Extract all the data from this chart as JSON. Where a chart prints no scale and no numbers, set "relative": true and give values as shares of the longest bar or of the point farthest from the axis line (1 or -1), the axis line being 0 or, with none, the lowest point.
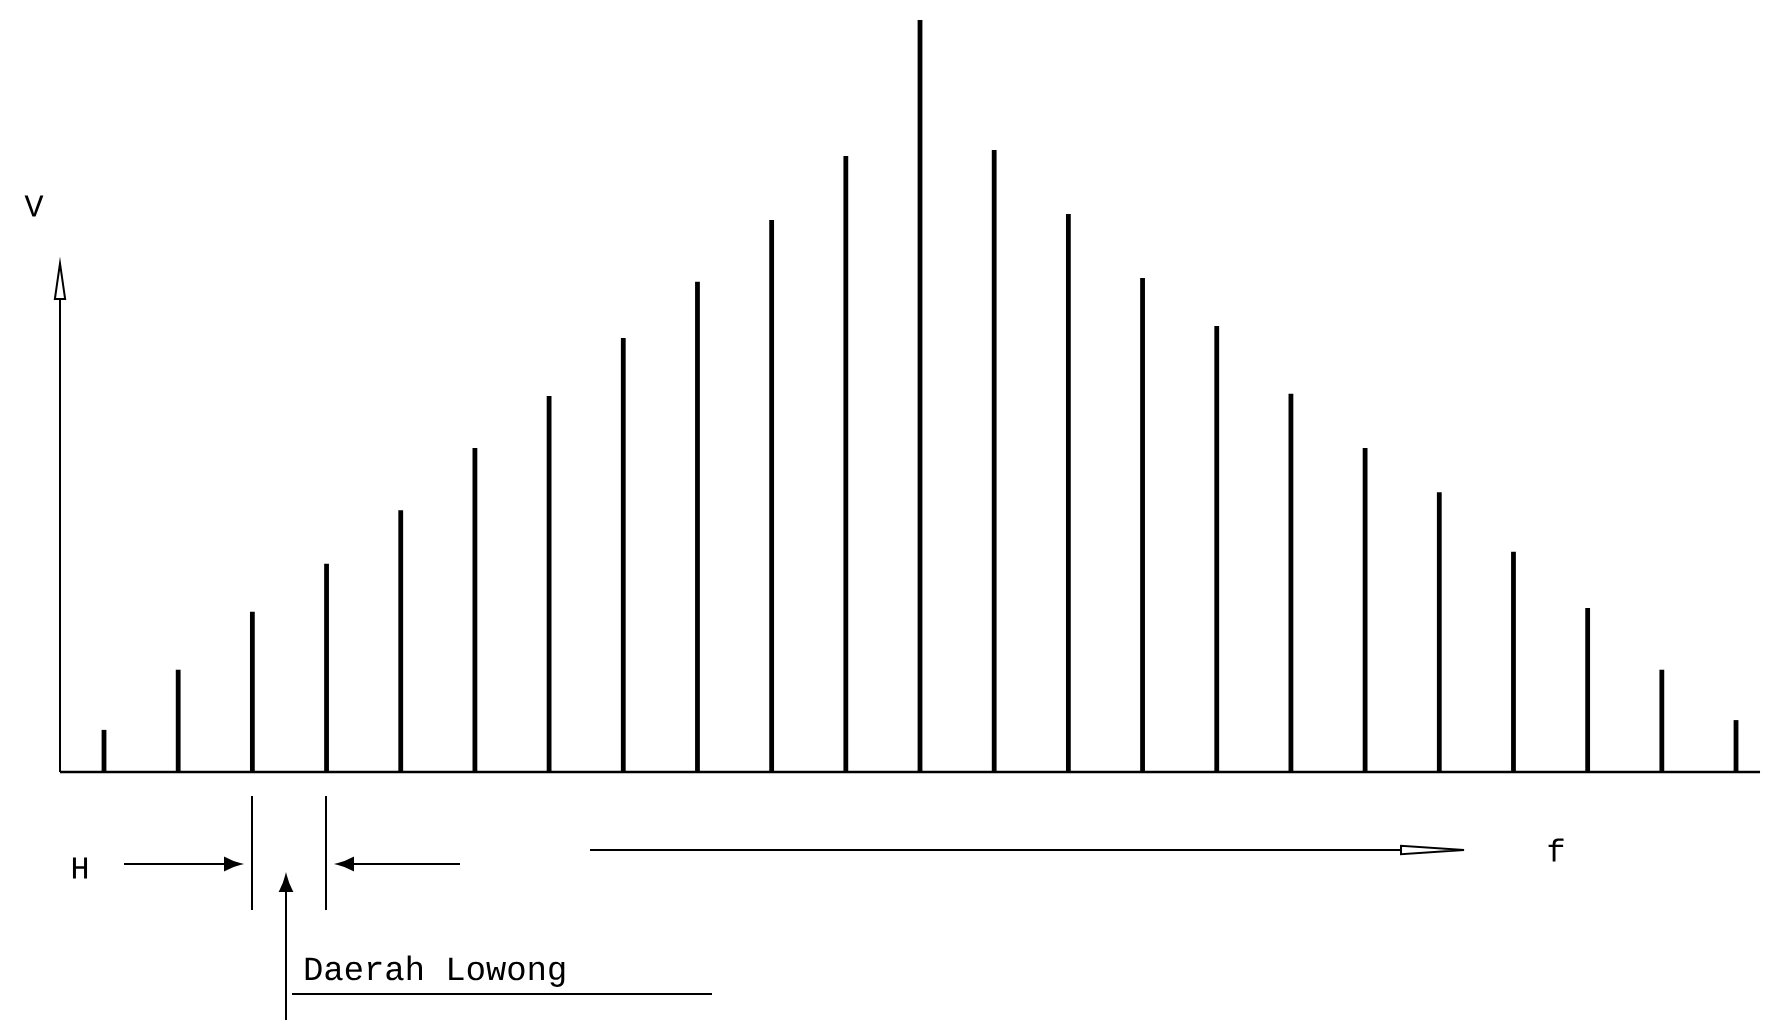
{
  "chart_data": {
    "type": "bar",
    "relative": true,
    "color": "#000000",
    "categories": [
      null,
      null,
      null,
      null,
      null,
      null,
      null,
      null,
      null,
      null,
      null,
      null,
      null,
      null,
      null,
      null,
      null,
      null,
      null,
      null,
      null,
      null,
      null
    ],
    "values": [
      0.056,
      0.136,
      0.213,
      0.277,
      0.348,
      0.431,
      0.5,
      0.577,
      0.652,
      0.734,
      0.819,
      1,
      0.827,
      0.742,
      0.657,
      0.593,
      0.503,
      0.431,
      0.372,
      0.293,
      0.218,
      0.136,
      0.069
    ],
    "annotations": [
      "V",
      "f",
      "H",
      "Daerah Lowong"
    ]
  }
}
